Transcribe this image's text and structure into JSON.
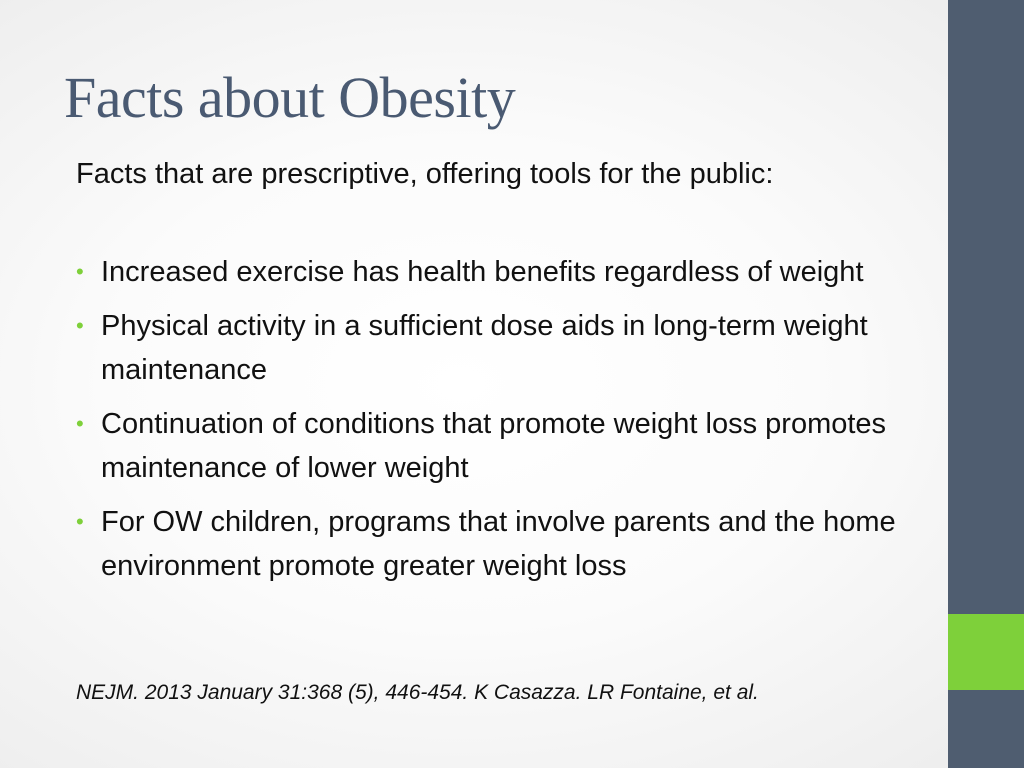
{
  "slide": {
    "title": "Facts about Obesity",
    "intro": "Facts that are prescriptive, offering tools for the public:",
    "bullet_marker": "•",
    "bullets": [
      "Increased exercise has health benefits regardless of weight",
      "Physical activity in a sufficient dose aids in long-term weight maintenance",
      "Continuation of conditions that promote weight loss promotes maintenance of lower weight",
      "For OW children, programs that involve parents and the home environment promote greater weight loss"
    ],
    "citation": "NEJM. 2013 January 31:368 (5), 446-454. K Casazza. LR Fontaine, et al."
  },
  "colors": {
    "title": "#4a5a72",
    "side_bar": "#4f5d70",
    "accent": "#7ed03a",
    "text": "#111111"
  }
}
